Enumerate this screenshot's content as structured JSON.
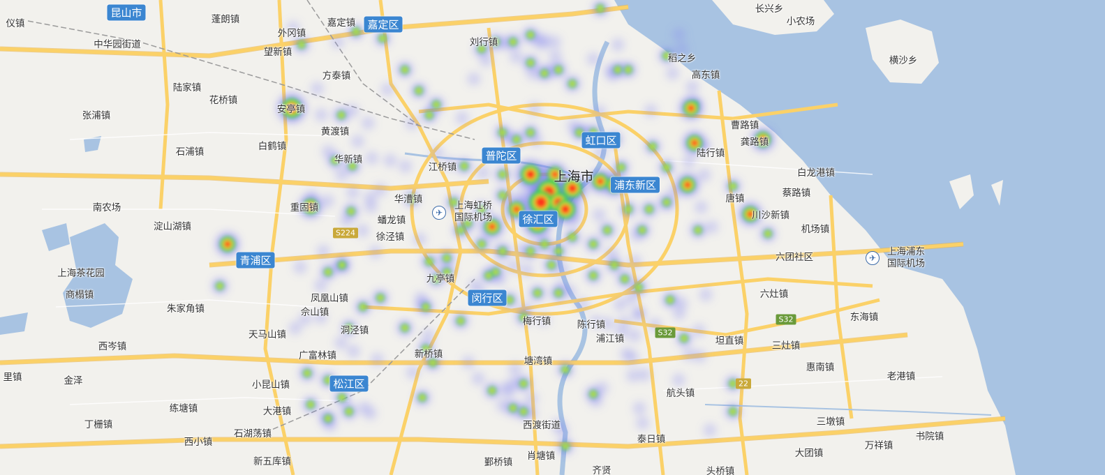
{
  "map": {
    "colors": {
      "land": "#f2f1ed",
      "water": "#a8c3e2",
      "road": "#fbd168",
      "road_edge": "#eab54c",
      "label_bg": "#3b86d1"
    },
    "labels": {
      "kunshan": "昆山市",
      "penglang": "蓬朗镇",
      "jiading_town": "嘉定镇",
      "jiading_district": "嘉定区",
      "yiyi": "仪镇",
      "huaqiao": "中华园街道",
      "waigang": "外冈镇",
      "wangxin": "望新镇",
      "liuhang": "刘行镇",
      "fangtai": "方泰镇",
      "lujia": "陆家镇",
      "huaqiao_town": "花桥镇",
      "anting": "安亭镇",
      "zhangpu": "张浦镇",
      "huangdu": "黄渡镇",
      "baihe": "白鹤镇",
      "shidian": "石浦镇",
      "huaxin": "华新镇",
      "jiangqiao": "江桥镇",
      "putuo": "普陀区",
      "hongkou": "虹口区",
      "shanghai": "上海市",
      "pudong": "浦东新区",
      "huacao": "华漕镇",
      "hongqiao_airport": "上海虹桥\n国际机场",
      "chonggu": "重固镇",
      "panlong": "蟠龙镇",
      "xujing": "徐泾镇",
      "xuhui": "徐汇区",
      "nannong": "南农场",
      "dianshanhu": "淀山湖镇",
      "qingpu": "青浦区",
      "chayuan": "上海茶花园",
      "shangtang": "商榻镇",
      "zhujiajiao": "朱家角镇",
      "xicen": "西岑镇",
      "fenghuangshan": "凤凰山镇",
      "sheshan": "佘山镇",
      "jiuting": "九亭镇",
      "minhang": "闵行区",
      "tianmashan": "天马山镇",
      "dongjing": "洞泾镇",
      "guangfulin": "广富林镇",
      "xinqiao": "新桥镇",
      "meihang": "梅行镇",
      "chenhang": "陈行镇",
      "pujiang": "浦江镇",
      "songjiang": "松江区",
      "xiaokunshan": "小昆山镇",
      "tangwan": "塘湾镇",
      "jinze": "金泽",
      "lianhu": "练塘镇",
      "dagang": "大港镇",
      "dingzha": "丁栅镇",
      "xixiao": "西小镇",
      "shihudang": "石湖荡镇",
      "xinwuku": "新五库镇",
      "xidu": "西渡街道",
      "yecheng": "鄞桥镇",
      "xiaotang": "肖塘镇",
      "taori": "泰日镇",
      "hangtou": "航头镇",
      "zhili": "里镇",
      "changxing": "长兴乡",
      "xiaonongchang": "小农场",
      "hengsha": "横沙乡",
      "daozhi": "稻之乡",
      "gaodong": "高东镇",
      "caolu": "曹路镇",
      "gonglu": "龚路镇",
      "luhang": "陆行镇",
      "bailonggang": "白龙港镇",
      "tang": "唐镇",
      "cailu": "蔡路镇",
      "chuansha": "川沙新镇",
      "jichang": "机场镇",
      "pudong_airport": "上海浦东\n国际机场",
      "liutuan": "六团社区",
      "liuzao": "六灶镇",
      "dongshai": "东海镇",
      "kangqiao": "坦直镇",
      "sanzao": "三灶镇",
      "huinan": "惠南镇",
      "laogang": "老港镇",
      "sandun": "三墩镇",
      "wanxiang": "万祥镇",
      "shuyuan": "书院镇",
      "datuan": "大团镇",
      "qiyan": "齐贤",
      "touqiao": "头桥镇",
      "road_s224": "S224",
      "road_s32a": "S32",
      "road_s32b": "S32",
      "road_s22": "22",
      "xin": "新镇"
    }
  }
}
